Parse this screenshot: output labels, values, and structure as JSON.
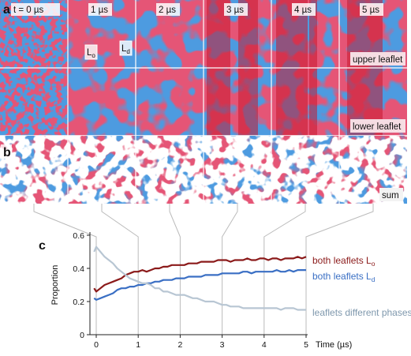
{
  "panels": {
    "a_letter": "a",
    "b_letter": "b",
    "c_letter": "c",
    "time_labels": [
      "t = 0 µs",
      "1 µs",
      "2 µs",
      "3 µs",
      "4 µs",
      "5 µs"
    ],
    "lo_tag": "Lo",
    "ld_tag": "Ld",
    "lo_base": "L",
    "lo_sub": "o",
    "ld_base": "L",
    "ld_sub": "d",
    "upper_leaflet": "upper leaflet",
    "lower_leaflet": "lower leaflet",
    "sum": "sum"
  },
  "colors": {
    "red": "#c8172e",
    "blue": "#4d9be0",
    "white": "#ffffff",
    "dark_red_series": "#8b1a1a",
    "blue_series": "#3a6fc4",
    "gray_series": "#b8c6d3",
    "connector": "#bbbbbb"
  },
  "chart_data": {
    "type": "line",
    "xlabel": "Time (µs)",
    "ylabel": "Proportion",
    "xlim": [
      0,
      5
    ],
    "ylim": [
      0,
      0.6
    ],
    "xticks": [
      0,
      1,
      2,
      3,
      4,
      5
    ],
    "yticks": [
      0,
      0.2,
      0.4,
      0.6
    ],
    "x": [
      -0.05,
      0,
      0.1,
      0.2,
      0.3,
      0.4,
      0.5,
      0.6,
      0.7,
      0.8,
      0.9,
      1.0,
      1.1,
      1.2,
      1.3,
      1.4,
      1.5,
      1.6,
      1.7,
      1.8,
      1.9,
      2.0,
      2.1,
      2.2,
      2.3,
      2.4,
      2.5,
      2.6,
      2.7,
      2.8,
      2.9,
      3.0,
      3.1,
      3.2,
      3.3,
      3.4,
      3.5,
      3.6,
      3.7,
      3.8,
      3.9,
      4.0,
      4.1,
      4.2,
      4.3,
      4.4,
      4.5,
      4.6,
      4.7,
      4.8,
      4.9,
      5.0
    ],
    "series": [
      {
        "name": "both leaflets Lo",
        "name_base": "both leaflets L",
        "name_sub": "o",
        "values": [
          0.28,
          0.26,
          0.28,
          0.3,
          0.31,
          0.32,
          0.33,
          0.34,
          0.36,
          0.37,
          0.38,
          0.38,
          0.39,
          0.38,
          0.39,
          0.4,
          0.4,
          0.41,
          0.41,
          0.42,
          0.42,
          0.42,
          0.42,
          0.43,
          0.43,
          0.43,
          0.44,
          0.44,
          0.44,
          0.44,
          0.45,
          0.45,
          0.45,
          0.44,
          0.45,
          0.45,
          0.45,
          0.46,
          0.45,
          0.45,
          0.46,
          0.46,
          0.45,
          0.46,
          0.46,
          0.45,
          0.46,
          0.46,
          0.46,
          0.47,
          0.46,
          0.47
        ]
      },
      {
        "name": "both leaflets Ld",
        "name_base": "both leaflets L",
        "name_sub": "d",
        "values": [
          0.22,
          0.21,
          0.22,
          0.23,
          0.24,
          0.25,
          0.27,
          0.28,
          0.28,
          0.29,
          0.29,
          0.3,
          0.3,
          0.31,
          0.31,
          0.32,
          0.32,
          0.33,
          0.33,
          0.33,
          0.34,
          0.34,
          0.34,
          0.35,
          0.35,
          0.35,
          0.35,
          0.36,
          0.36,
          0.36,
          0.36,
          0.37,
          0.37,
          0.37,
          0.37,
          0.37,
          0.38,
          0.38,
          0.37,
          0.38,
          0.38,
          0.38,
          0.38,
          0.38,
          0.39,
          0.38,
          0.38,
          0.39,
          0.38,
          0.39,
          0.39,
          0.39
        ]
      },
      {
        "name": "leaflets different phases",
        "values": [
          0.5,
          0.53,
          0.5,
          0.47,
          0.45,
          0.43,
          0.4,
          0.38,
          0.36,
          0.34,
          0.33,
          0.32,
          0.31,
          0.31,
          0.3,
          0.28,
          0.28,
          0.26,
          0.26,
          0.25,
          0.24,
          0.24,
          0.24,
          0.23,
          0.22,
          0.22,
          0.21,
          0.2,
          0.2,
          0.2,
          0.19,
          0.18,
          0.18,
          0.17,
          0.17,
          0.17,
          0.16,
          0.16,
          0.16,
          0.16,
          0.16,
          0.16,
          0.16,
          0.16,
          0.16,
          0.15,
          0.16,
          0.16,
          0.16,
          0.15,
          0.15,
          0.15
        ]
      }
    ]
  }
}
